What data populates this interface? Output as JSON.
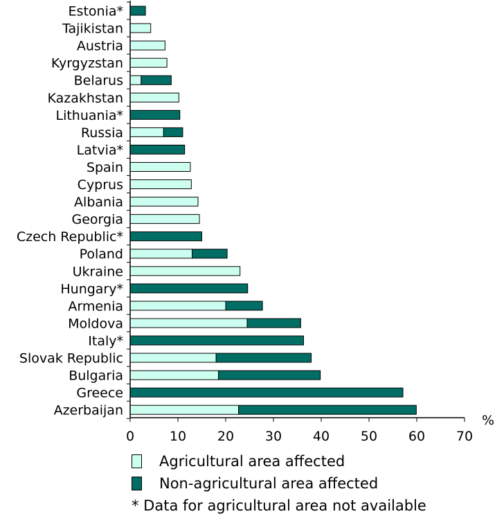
{
  "colors": {
    "agricultural": "#ccfff0",
    "non_agricultural": "#006e64",
    "outline": "#000000"
  },
  "chart_data": {
    "type": "bar",
    "orientation": "horizontal",
    "stacked": true,
    "categories": [
      "Estonia*",
      "Tajikistan",
      "Austria",
      "Kyrgyzstan",
      "Belarus",
      "Kazakhstan",
      "Lithuania*",
      "Russia",
      "Latvia*",
      "Spain",
      "Cyprus",
      "Albania",
      "Georgia",
      "Czech Republic*",
      "Poland",
      "Ukraine",
      "Hungary*",
      "Armenia",
      "Moldova",
      "Italy*",
      "Slovak Republic",
      "Bulgaria",
      "Greece",
      "Azerbaijan"
    ],
    "series": [
      {
        "name": "Agricultural area affected",
        "color": "#ccfff0",
        "values": [
          0,
          4.3,
          7.3,
          7.7,
          2.3,
          10.2,
          0,
          7.0,
          0,
          12.6,
          12.8,
          14.2,
          14.5,
          0,
          13.0,
          23.0,
          0,
          20.0,
          24.5,
          0,
          18.0,
          18.5,
          0,
          22.7
        ]
      },
      {
        "name": "Non-agricultural area affected",
        "color": "#006e64",
        "values": [
          3.2,
          0,
          0,
          0,
          6.3,
          0,
          10.4,
          4.0,
          11.4,
          0,
          0,
          0,
          0,
          15.0,
          7.3,
          0,
          24.6,
          7.7,
          11.2,
          36.3,
          19.9,
          21.3,
          57.1,
          37.2
        ]
      }
    ],
    "xlim": [
      0,
      70
    ],
    "xticks": [
      "0",
      "10",
      "20",
      "30",
      "40",
      "50",
      "60",
      "70"
    ],
    "xlabel": "%",
    "grid": false,
    "legend_position": "bottom"
  },
  "legend": {
    "agricultural_label": "Agricultural area affected",
    "non_agricultural_label": "Non-agricultural area affected",
    "note": "* Data for agricultural area not available"
  }
}
